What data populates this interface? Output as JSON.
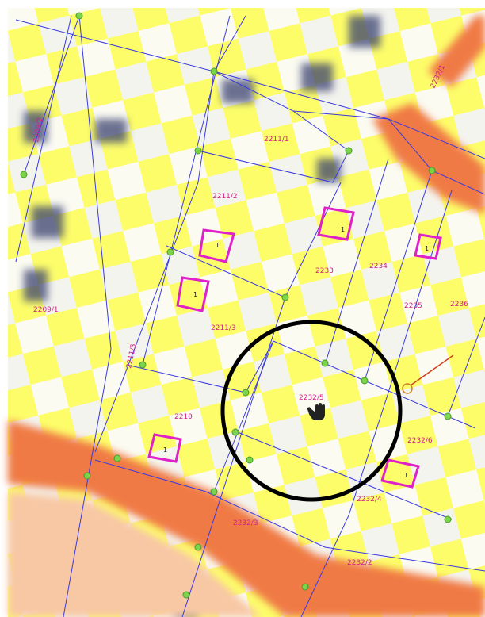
{
  "parcels": [
    {
      "label": "2209/2"
    },
    {
      "label": "2211/1"
    },
    {
      "label": "2211/2"
    },
    {
      "label": "2233"
    },
    {
      "label": "2234"
    },
    {
      "label": "2235"
    },
    {
      "label": "2236"
    },
    {
      "label": "2209/1"
    },
    {
      "label": "2211/3"
    },
    {
      "label": "2211/5"
    },
    {
      "label": "2232/5"
    },
    {
      "label": "2210"
    },
    {
      "label": "2232/6"
    },
    {
      "label": "2232/4"
    },
    {
      "label": "2232/3"
    },
    {
      "label": "2232/2"
    },
    {
      "label": "2232/1"
    }
  ],
  "building_labels": [
    "1",
    "1",
    "1",
    "1",
    "1",
    "1"
  ]
}
